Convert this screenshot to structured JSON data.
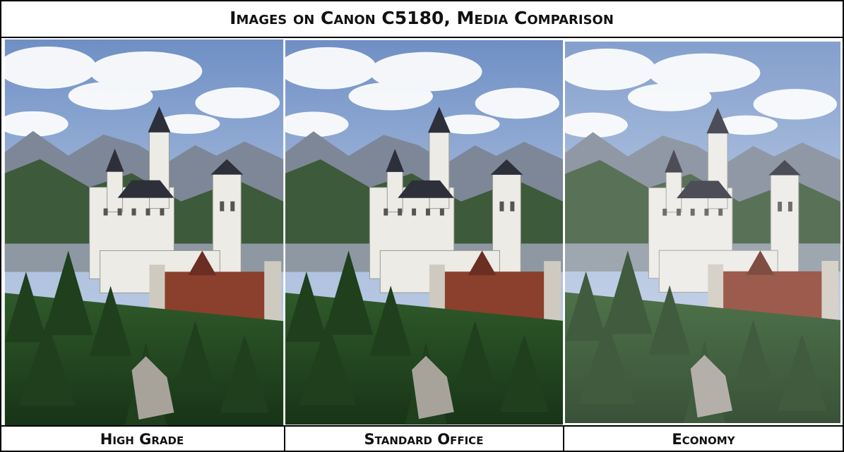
{
  "header": {
    "title": "Images on Canon C5180, Media Comparison"
  },
  "panels": [
    {
      "label": "High Grade"
    },
    {
      "label": "Standard Office"
    },
    {
      "label": "Economy"
    }
  ]
}
